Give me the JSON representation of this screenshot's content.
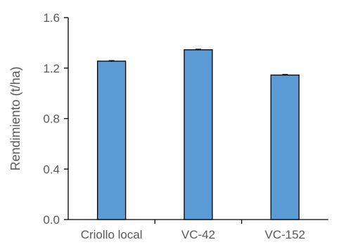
{
  "chart_data": {
    "type": "bar",
    "title": "",
    "xlabel": "",
    "ylabel": "Rendimiento (t/ha)",
    "categories": [
      "Criollo local",
      "VC-42",
      "VC-152"
    ],
    "values": [
      1.255,
      1.345,
      1.145
    ],
    "error": [
      0.005,
      0.005,
      0.005
    ],
    "ylim": [
      0,
      1.6
    ],
    "yticks": [
      0,
      0.4,
      0.8,
      1.2,
      1.6
    ],
    "ytick_labels": [
      "0.0",
      "0.4",
      "0.8",
      "1.2",
      "1.6"
    ],
    "grid": false,
    "legend": "none",
    "bar_color": "#5b9bd5",
    "bar_edge_color": "#000000"
  }
}
